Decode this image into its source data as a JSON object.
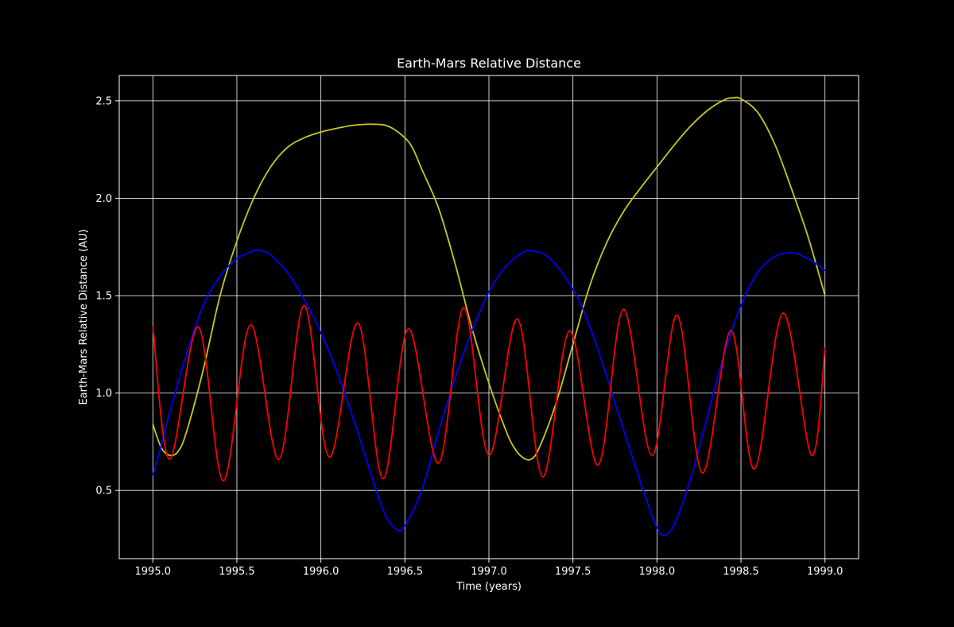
{
  "chart_data": {
    "type": "line",
    "title": "Earth-Mars Relative Distance",
    "xlabel": "Time (years)",
    "ylabel": "Earth-Mars Relative Distance (AU)",
    "xlim": [
      1994.8,
      1999.2
    ],
    "ylim": [
      0.15,
      2.63
    ],
    "xticks": [
      1995.0,
      1995.5,
      1996.0,
      1996.5,
      1997.0,
      1997.5,
      1998.0,
      1998.5,
      1999.0
    ],
    "xtick_labels": [
      "1995.0",
      "1995.5",
      "1996.0",
      "1996.5",
      "1997.0",
      "1997.5",
      "1998.0",
      "1998.5",
      "1999.0"
    ],
    "yticks": [
      0.5,
      1.0,
      1.5,
      2.0,
      2.5
    ],
    "ytick_labels": [
      "0.5",
      "1.0",
      "1.5",
      "2.0",
      "2.5"
    ],
    "grid": true,
    "background": "#000000",
    "foreground": "#ffffff",
    "series": [
      {
        "color": "#c8c81e",
        "x": [
          1995.0,
          1995.05,
          1995.1,
          1995.15,
          1995.2,
          1995.3,
          1995.4,
          1995.5,
          1995.6,
          1995.7,
          1995.8,
          1995.9,
          1996.0,
          1996.1,
          1996.2,
          1996.3,
          1996.4,
          1996.5,
          1996.55,
          1996.6,
          1996.7,
          1996.8,
          1996.9,
          1997.0,
          1997.1,
          1997.15,
          1997.2,
          1997.25,
          1997.3,
          1997.4,
          1997.5,
          1997.6,
          1997.7,
          1997.8,
          1997.9,
          1998.0,
          1998.1,
          1998.2,
          1998.3,
          1998.4,
          1998.45,
          1998.5,
          1998.6,
          1998.7,
          1998.8,
          1998.9,
          1999.0
        ],
        "y": [
          0.84,
          0.72,
          0.68,
          0.7,
          0.8,
          1.12,
          1.5,
          1.78,
          2.0,
          2.16,
          2.26,
          2.31,
          2.34,
          2.36,
          2.375,
          2.38,
          2.37,
          2.31,
          2.25,
          2.15,
          1.95,
          1.66,
          1.33,
          1.05,
          0.81,
          0.72,
          0.67,
          0.66,
          0.72,
          0.95,
          1.25,
          1.55,
          1.77,
          1.93,
          2.05,
          2.16,
          2.27,
          2.37,
          2.45,
          2.505,
          2.515,
          2.51,
          2.44,
          2.28,
          2.05,
          1.8,
          1.5
        ]
      },
      {
        "color": "#0000ff",
        "x": [
          1995.0,
          1995.05,
          1995.1,
          1995.2,
          1995.3,
          1995.4,
          1995.5,
          1995.6,
          1995.65,
          1995.7,
          1995.8,
          1995.9,
          1996.0,
          1996.1,
          1996.2,
          1996.3,
          1996.38,
          1996.45,
          1996.5,
          1996.6,
          1996.7,
          1996.8,
          1996.9,
          1997.0,
          1997.1,
          1997.2,
          1997.26,
          1997.35,
          1997.45,
          1997.55,
          1997.65,
          1997.75,
          1997.85,
          1997.95,
          1998.0,
          1998.04,
          1998.1,
          1998.2,
          1998.3,
          1998.4,
          1998.5,
          1998.6,
          1998.7,
          1998.8,
          1998.9,
          1999.0
        ],
        "y": [
          0.58,
          0.73,
          0.9,
          1.2,
          1.45,
          1.6,
          1.69,
          1.73,
          1.73,
          1.71,
          1.62,
          1.48,
          1.31,
          1.1,
          0.85,
          0.58,
          0.38,
          0.3,
          0.32,
          0.5,
          0.8,
          1.08,
          1.32,
          1.52,
          1.65,
          1.72,
          1.73,
          1.7,
          1.6,
          1.45,
          1.22,
          0.95,
          0.68,
          0.42,
          0.31,
          0.27,
          0.32,
          0.56,
          0.88,
          1.2,
          1.45,
          1.62,
          1.7,
          1.72,
          1.69,
          1.63
        ]
      },
      {
        "color": "#ff0000",
        "x": [
          1995.0,
          1995.1,
          1995.27,
          1995.42,
          1995.58,
          1995.75,
          1995.9,
          1996.05,
          1996.22,
          1996.37,
          1996.52,
          1996.7,
          1996.85,
          1997.0,
          1997.17,
          1997.32,
          1997.48,
          1997.65,
          1997.8,
          1997.97,
          1998.12,
          1998.27,
          1998.44,
          1998.58,
          1998.75,
          1998.92,
          1999.0
        ],
        "y": [
          1.34,
          0.66,
          1.34,
          0.55,
          1.35,
          0.66,
          1.45,
          0.67,
          1.36,
          0.56,
          1.33,
          0.64,
          1.44,
          0.68,
          1.38,
          0.57,
          1.32,
          0.63,
          1.43,
          0.68,
          1.4,
          0.59,
          1.32,
          0.61,
          1.41,
          0.68,
          1.23
        ]
      }
    ]
  }
}
